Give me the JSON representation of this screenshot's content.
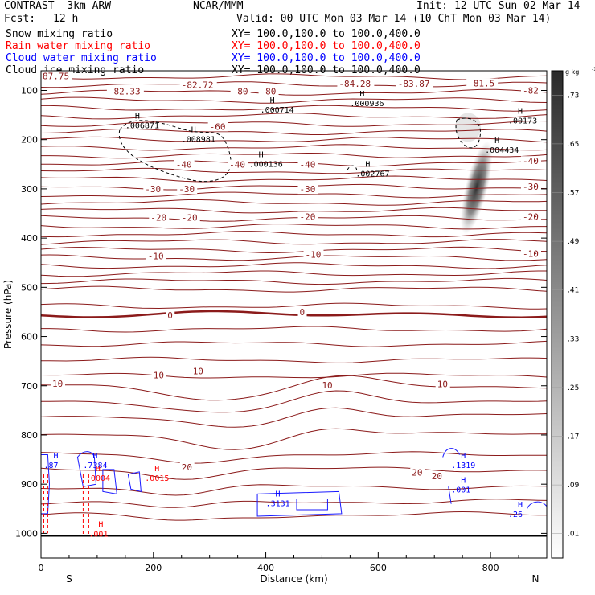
{
  "header": {
    "title": "CONTRAST  3km ARW",
    "org": "NCAR/MMM",
    "init": "Init: 12 UTC Sun 02 Mar 14",
    "fcst_label": "Fcst:",
    "fcst_value": "12 h",
    "valid": "Valid: 00 UTC Mon 03 Mar 14 (10 ChT Mon 03 Mar 14)"
  },
  "legend": {
    "fields": [
      {
        "name": "Snow mixing ratio",
        "color": "#000000",
        "xy": "XY= 100.0,100.0 to 100.0,400.0"
      },
      {
        "name": "Rain water mixing ratio",
        "color": "#ff0000",
        "xy": "XY= 100.0,100.0 to 100.0,400.0"
      },
      {
        "name": "Cloud water mixing ratio",
        "color": "#0000ff",
        "xy": "XY= 100.0,100.0 to 100.0,400.0"
      },
      {
        "name": "Cloud ice mixing ratio",
        "color": "#000000",
        "xy": "XY= 100.0,100.0 to 100.0,400.0"
      }
    ]
  },
  "colors": {
    "temperature_contour": "#8b1a1a",
    "zero_isotherm": "#8b1a1a",
    "cloud_water": "#1a1aff",
    "rain_water": "#ff0000",
    "snow": "#000000",
    "axis": "#000000"
  },
  "chart_data": {
    "type": "cross-section",
    "xlabel": "Distance (km)",
    "ylabel": "Pressure (hPa)",
    "xlim": [
      0,
      900
    ],
    "ylim": [
      1050,
      60
    ],
    "x_ticks": [
      0,
      200,
      400,
      600,
      800
    ],
    "y_ticks": [
      100,
      200,
      300,
      400,
      500,
      600,
      700,
      800,
      900,
      1000
    ],
    "end_labels": {
      "left": "S",
      "right": "N"
    },
    "colorbar": {
      "units": "g kg",
      "units_sup": "-1",
      "ticks": [
        ".01",
        ".09",
        ".17",
        ".25",
        ".33",
        ".41",
        ".49",
        ".57",
        ".65",
        ".73"
      ]
    },
    "isotherm_labels": [
      {
        "text": "87.75",
        "x": 0,
        "p": 72
      },
      {
        "text": "-82.33",
        "x": 120,
        "p": 103
      },
      {
        "text": "-82.72",
        "x": 250,
        "p": 90
      },
      {
        "text": "-80",
        "x": 340,
        "p": 103
      },
      {
        "text": "-80",
        "x": 390,
        "p": 103
      },
      {
        "text": "-84.28",
        "x": 530,
        "p": 88
      },
      {
        "text": "-83.87",
        "x": 635,
        "p": 88
      },
      {
        "text": "-81.5",
        "x": 760,
        "p": 87
      },
      {
        "text": "-82",
        "x": 895,
        "p": 102
      },
      {
        "text": "-60",
        "x": 300,
        "p": 175
      },
      {
        "text": "-40",
        "x": 240,
        "p": 252
      },
      {
        "text": "-40",
        "x": 335,
        "p": 252
      },
      {
        "text": "-40",
        "x": 460,
        "p": 252
      },
      {
        "text": "-40",
        "x": 880,
        "p": 245
      },
      {
        "text": "-30",
        "x": 185,
        "p": 302
      },
      {
        "text": "-30",
        "x": 245,
        "p": 302
      },
      {
        "text": "-30",
        "x": 460,
        "p": 302
      },
      {
        "text": "-30",
        "x": 880,
        "p": 297
      },
      {
        "text": "-20",
        "x": 195,
        "p": 360
      },
      {
        "text": "-20",
        "x": 250,
        "p": 360
      },
      {
        "text": "-20",
        "x": 460,
        "p": 358
      },
      {
        "text": "-20",
        "x": 885,
        "p": 358
      },
      {
        "text": "-10",
        "x": 190,
        "p": 438
      },
      {
        "text": "-10",
        "x": 470,
        "p": 435
      },
      {
        "text": "-10",
        "x": 880,
        "p": 433
      },
      {
        "text": "0",
        "x": 225,
        "p": 558
      },
      {
        "text": "0",
        "x": 460,
        "p": 552
      },
      {
        "text": "10",
        "x": 200,
        "p": 680
      },
      {
        "text": "10",
        "x": 270,
        "p": 672
      },
      {
        "text": "10",
        "x": 20,
        "p": 697
      },
      {
        "text": "10",
        "x": 500,
        "p": 700
      },
      {
        "text": "10",
        "x": 705,
        "p": 698
      },
      {
        "text": "20",
        "x": 250,
        "p": 867
      },
      {
        "text": "20",
        "x": 660,
        "p": 878
      },
      {
        "text": "20",
        "x": 695,
        "p": 885
      }
    ],
    "maxima": [
      {
        "text": ".006871",
        "x": 150,
        "p": 172,
        "color": "#000000"
      },
      {
        "text": ".008981",
        "x": 250,
        "p": 200,
        "color": "#000000"
      },
      {
        "text": ".000136",
        "x": 370,
        "p": 250,
        "color": "#000000"
      },
      {
        "text": ".000714",
        "x": 390,
        "p": 140,
        "color": "#000000"
      },
      {
        "text": ".000936",
        "x": 550,
        "p": 127,
        "color": "#000000"
      },
      {
        "text": ".002767",
        "x": 560,
        "p": 270,
        "color": "#000000"
      },
      {
        "text": ".004434",
        "x": 790,
        "p": 222,
        "color": "#000000"
      },
      {
        "text": ".00173",
        "x": 860,
        "p": 162,
        "color": "#000000"
      },
      {
        "text": ".87",
        "x": 5,
        "p": 862,
        "color": "#0000ff"
      },
      {
        "text": ".7384",
        "x": 75,
        "p": 862,
        "color": "#0000ff"
      },
      {
        "text": ".1319",
        "x": 730,
        "p": 862,
        "color": "#0000ff"
      },
      {
        "text": ".3131",
        "x": 400,
        "p": 940,
        "color": "#0000ff"
      },
      {
        "text": ".001",
        "x": 730,
        "p": 912,
        "color": "#0000ff"
      },
      {
        "text": ".26",
        "x": 890,
        "p": 962,
        "color": "#0000ff"
      },
      {
        "text": ".0004",
        "x": 80,
        "p": 888,
        "color": "#ff0000"
      },
      {
        "text": ".0015",
        "x": 185,
        "p": 888,
        "color": "#ff0000"
      },
      {
        "text": ".001",
        "x": 85,
        "p": 1002,
        "color": "#ff0000"
      }
    ],
    "ice_plume": {
      "x": 770,
      "p_top": 200,
      "p_bottom": 395,
      "max_gkg": 0.65
    }
  }
}
